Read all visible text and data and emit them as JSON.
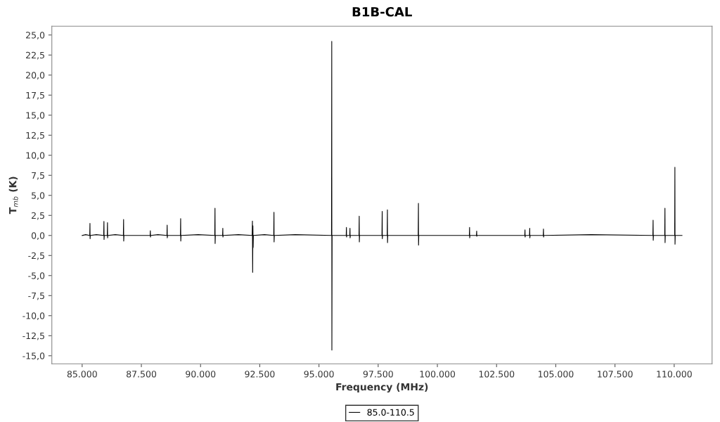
{
  "chart_data": {
    "type": "line",
    "title": "B1B-CAL",
    "xlabel": "Frequency (MHz)",
    "ylabel": "T$_{mb}$ (K)",
    "x": [
      85000,
      85150,
      85320,
      85330,
      85335,
      85345,
      85600,
      85910,
      85920,
      85925,
      85935,
      86060,
      86070,
      86075,
      86085,
      86400,
      86740,
      86750,
      86755,
      86765,
      87870,
      87880,
      87885,
      87895,
      88200,
      88580,
      88590,
      88595,
      88605,
      89150,
      89160,
      89165,
      89175,
      89900,
      90600,
      90610,
      90615,
      90625,
      90930,
      90940,
      90945,
      90955,
      91600,
      92180,
      92190,
      92200,
      92210,
      92220,
      92230,
      92700,
      93090,
      93100,
      93105,
      93115,
      94000,
      95530,
      95540,
      95545,
      95555,
      96150,
      96160,
      96165,
      96175,
      96300,
      96310,
      96315,
      96325,
      96690,
      96700,
      96705,
      96715,
      97660,
      97670,
      97675,
      97685,
      97880,
      97890,
      97895,
      97905,
      99190,
      99200,
      99205,
      99215,
      101350,
      101360,
      101365,
      101375,
      101650,
      101660,
      101665,
      101675,
      103690,
      103700,
      103705,
      103715,
      103890,
      103900,
      103905,
      103915,
      104470,
      104480,
      104485,
      104495,
      106500,
      109100,
      109110,
      109115,
      109125,
      109600,
      109610,
      109615,
      109625,
      110020,
      110030,
      110035,
      110045,
      110330
    ],
    "series": [
      {
        "name": "85.0-110.5",
        "color": "#000000",
        "values": [
          0,
          0.1,
          0,
          1.5,
          -0.4,
          0,
          0.1,
          0,
          1.75,
          -0.5,
          0,
          0,
          1.6,
          -0.3,
          0,
          0.1,
          0,
          2.0,
          -0.7,
          0,
          0,
          0.6,
          -0.2,
          0,
          0.1,
          0,
          1.3,
          -0.3,
          0,
          0,
          2.1,
          -0.7,
          0,
          0.1,
          0,
          3.4,
          -1.0,
          0,
          0,
          0.9,
          -0.2,
          0,
          0.1,
          0,
          1.8,
          -4.6,
          1.2,
          -1.5,
          0,
          0.1,
          0,
          2.9,
          -0.8,
          0,
          0.1,
          0,
          24.2,
          -14.3,
          0,
          0,
          1.0,
          -0.2,
          0,
          0,
          0.9,
          -0.3,
          0,
          0,
          2.4,
          -0.8,
          0,
          0,
          3.0,
          -0.4,
          0,
          0,
          3.2,
          -0.9,
          0,
          0,
          4.0,
          -1.2,
          0,
          0,
          1.0,
          -0.3,
          0,
          0,
          0.55,
          -0.1,
          0,
          0,
          0.7,
          -0.2,
          0,
          0,
          0.9,
          -0.3,
          0,
          0,
          0.8,
          -0.2,
          0,
          0.1,
          0,
          1.9,
          -0.6,
          0,
          0,
          3.4,
          -0.9,
          0,
          0,
          8.5,
          -1.1,
          0,
          0
        ]
      }
    ],
    "xlim": [
      83720,
      111600
    ],
    "ylim": [
      -16,
      26.1
    ],
    "xticks": [
      {
        "value": 85000,
        "label": "85.000"
      },
      {
        "value": 87500,
        "label": "87.500"
      },
      {
        "value": 90000,
        "label": "90.000"
      },
      {
        "value": 92500,
        "label": "92.500"
      },
      {
        "value": 95000,
        "label": "95.000"
      },
      {
        "value": 97500,
        "label": "97.500"
      },
      {
        "value": 100000,
        "label": "100.000"
      },
      {
        "value": 102500,
        "label": "102.500"
      },
      {
        "value": 105000,
        "label": "105.000"
      },
      {
        "value": 107500,
        "label": "107.500"
      },
      {
        "value": 110000,
        "label": "110.000"
      }
    ],
    "yticks": [
      {
        "value": -15,
        "label": "-15,0"
      },
      {
        "value": -12.5,
        "label": "-12,5"
      },
      {
        "value": -10,
        "label": "-10,0"
      },
      {
        "value": -7.5,
        "label": "-7,5"
      },
      {
        "value": -5,
        "label": "-5,0"
      },
      {
        "value": -2.5,
        "label": "-2,5"
      },
      {
        "value": 0,
        "label": "0,0"
      },
      {
        "value": 2.5,
        "label": "2,5"
      },
      {
        "value": 5,
        "label": "5,0"
      },
      {
        "value": 7.5,
        "label": "7,5"
      },
      {
        "value": 10,
        "label": "10,0"
      },
      {
        "value": 12.5,
        "label": "12,5"
      },
      {
        "value": 15,
        "label": "15,0"
      },
      {
        "value": 17.5,
        "label": "17,5"
      },
      {
        "value": 20,
        "label": "20,0"
      },
      {
        "value": 22.5,
        "label": "22,5"
      },
      {
        "value": 25,
        "label": "25,0"
      }
    ],
    "grid": false,
    "legend": "bottom",
    "marker": "none",
    "line_style": "solid"
  }
}
